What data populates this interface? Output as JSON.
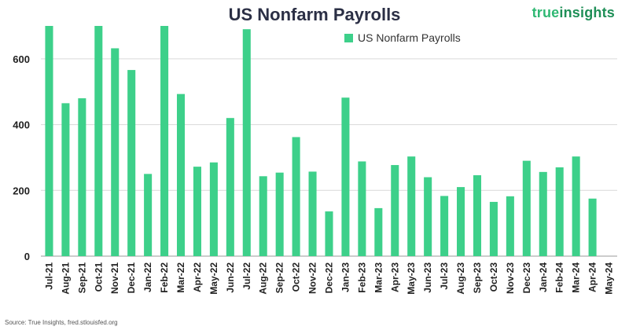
{
  "title": "US Nonfarm Payrolls",
  "brand": {
    "part1": "true",
    "part2": "insights"
  },
  "source": "Source: True Insights, fred.stlouisfed.org",
  "chart_data": {
    "type": "bar",
    "title": "US Nonfarm Payrolls",
    "xlabel": "",
    "ylabel": "",
    "ylim": [
      0,
      700
    ],
    "yticks": [
      0,
      200,
      400,
      600
    ],
    "grid": true,
    "legend_position": "top",
    "bar_color": "#3dd08a",
    "categories": [
      "Jul-21",
      "Aug-21",
      "Sep-21",
      "Oct-21",
      "Nov-21",
      "Dec-21",
      "Jan-22",
      "Feb-22",
      "Mar-22",
      "Apr-22",
      "May-22",
      "Jun-22",
      "Jul-22",
      "Aug-22",
      "Sep-22",
      "Oct-22",
      "Nov-22",
      "Dec-22",
      "Jan-23",
      "Feb-23",
      "Mar-23",
      "Apr-23",
      "May-23",
      "Jun-23",
      "Jul-23",
      "Aug-23",
      "Sep-23",
      "Oct-23",
      "Nov-23",
      "Dec-23",
      "Jan-24",
      "Feb-24",
      "Mar-24",
      "Apr-24",
      "May-24"
    ],
    "series": [
      {
        "name": "US Nonfarm Payrolls",
        "values": [
          700,
          465,
          480,
          700,
          632,
          566,
          250,
          700,
          493,
          272,
          285,
          420,
          690,
          243,
          254,
          362,
          257,
          136,
          482,
          288,
          146,
          277,
          303,
          240,
          183,
          210,
          246,
          165,
          182,
          290,
          256,
          270,
          303,
          175,
          null
        ]
      }
    ]
  }
}
